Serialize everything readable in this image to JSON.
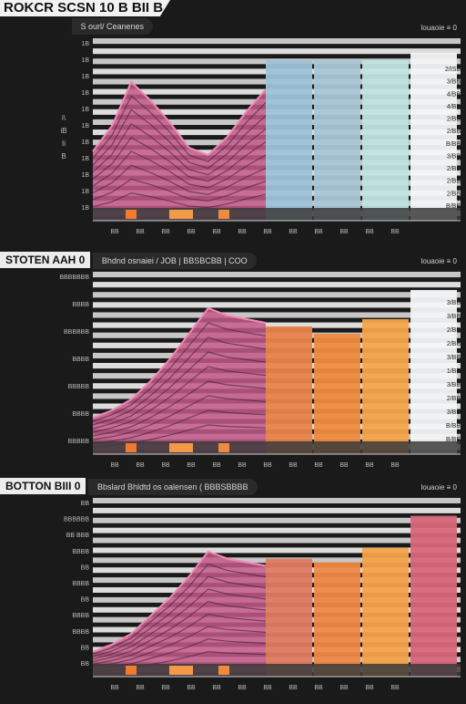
{
  "title": "ROKCR SCSN 10 B BII B",
  "panels": [
    {
      "header_title": "",
      "header_sub": "S  ourl/ Ceanenes",
      "legend_tag": "Iouaoie ≡ 0",
      "chart_data": {
        "type": "area+bar",
        "area_values": [
          38,
          52,
          76,
          66,
          54,
          40,
          36,
          46,
          60,
          72
        ],
        "bar_values": [
          88,
          88,
          88,
          92
        ],
        "bar_colors": [
          "#9ec2d8",
          "#a9c6d6",
          "#bfe3e2",
          "#f3f4f6"
        ],
        "ylim": [
          0,
          100
        ],
        "y_ticks_right": [
          "2/ISB",
          "3/BB",
          "4/BB",
          "4/BB",
          "2/BB",
          "2/BB",
          "B/BB",
          "3/BB",
          "2/BB",
          "2/BB",
          "2/BB",
          "B/BB"
        ],
        "y_ticks_left": [
          "1B",
          "1B",
          "1B",
          "1B",
          "1B",
          "1B",
          "1B",
          "1B",
          "1B",
          "1B",
          "1B"
        ],
        "left_side_labels": [
          "i\\",
          "iB",
          "Ii",
          "B"
        ],
        "x_ticks": [
          "BB",
          "BB",
          "BB",
          "BB",
          "BB",
          "BB",
          "BB",
          "BB",
          "BB",
          "BB",
          "BB",
          "BB"
        ]
      }
    },
    {
      "header_title": "STOTEN  AAH  0",
      "header_sub": "Bhdnd osnaiei /  JOB  |  BBSBCBB  | COO",
      "legend_tag": "Iouaoie ≡ 0",
      "chart_data": {
        "type": "area+bar",
        "area_values": [
          20,
          24,
          30,
          40,
          52,
          66,
          80,
          76,
          74,
          72
        ],
        "bar_values": [
          70,
          66,
          74,
          90
        ],
        "bar_colors": [
          "#e8834a",
          "#f08a3e",
          "#f4a44a",
          "#f3f4f6"
        ],
        "ylim": [
          0,
          100
        ],
        "y_ticks_right": [
          "3/BB",
          "3/BB",
          "2/BB",
          "2/BB",
          "3/BB",
          "1/BB",
          "3/BB",
          "2/BB",
          "3/BB",
          "B/BB",
          "B/BB"
        ],
        "y_ticks_left": [
          "BBBBBBB",
          "BBBB",
          "BBBBBB",
          "BBBB",
          "BBBBB",
          "BBBB",
          "BBBBB"
        ],
        "left_side_labels": [],
        "x_ticks": [
          "BB",
          "BB",
          "BB",
          "BB",
          "BB",
          "BB",
          "BB",
          "BB",
          "BB",
          "BB",
          "BB",
          "BB"
        ]
      }
    },
    {
      "header_title": "BOTTON  BIII  0",
      "header_sub": "Bbslard  Bhldtd  os  oalensen  (  BBBSBBBB",
      "legend_tag": "Iouaoie ≡ 0",
      "chart_data": {
        "type": "area+bar",
        "area_values": [
          14,
          18,
          24,
          34,
          44,
          56,
          70,
          66,
          64,
          62
        ],
        "bar_values": [
          66,
          64,
          72,
          90
        ],
        "bar_colors": [
          "#e07a62",
          "#ee8846",
          "#f4a24a",
          "#d8677a"
        ],
        "ylim": [
          0,
          100
        ],
        "y_ticks_right": [],
        "y_ticks_left": [
          "BB",
          "BBBBBB",
          "BB BBB",
          "BBBB",
          "BB",
          "BBBB",
          "BB",
          "BBBB",
          "BBBB",
          "BB",
          "BB"
        ],
        "left_side_labels": [],
        "x_ticks": [
          "BB",
          "BB",
          "BB",
          "BB",
          "BB",
          "BB",
          "BB",
          "BB",
          "BB",
          "BB",
          "BB",
          "BB"
        ]
      }
    }
  ]
}
